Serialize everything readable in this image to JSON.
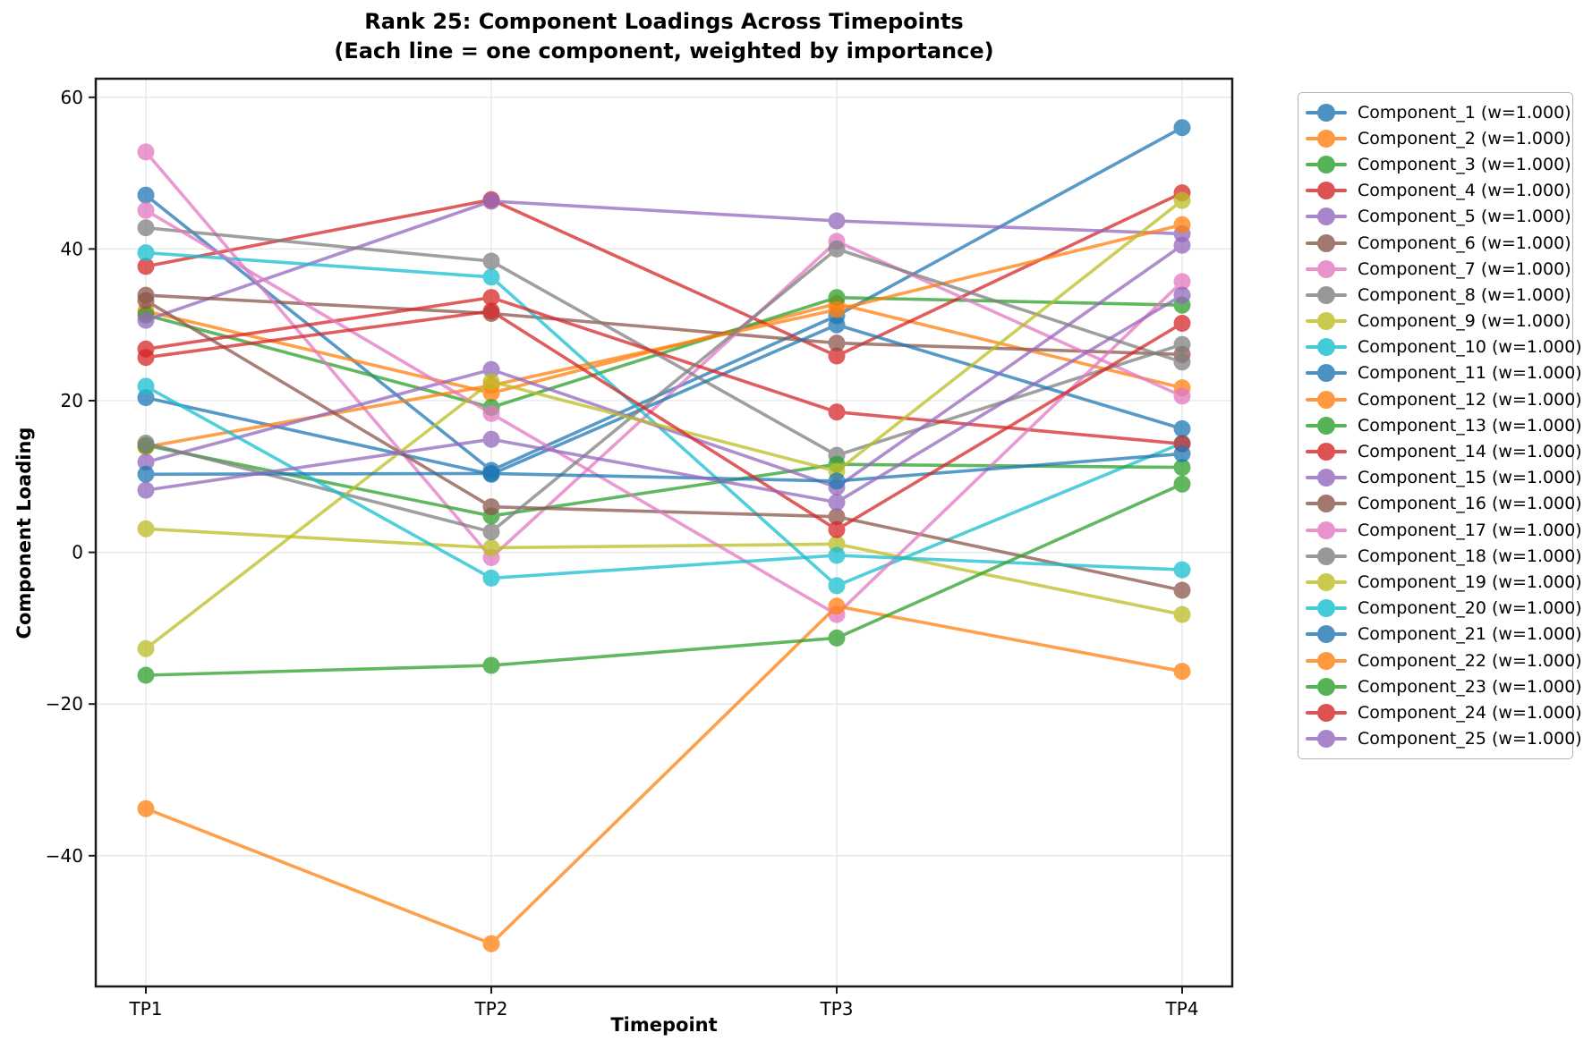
{
  "title": {
    "line1": "Rank 25: Component Loadings Across Timepoints",
    "line2": "(Each line = one component, weighted by importance)"
  },
  "axes": {
    "x_label": "Timepoint",
    "y_label": "Component Loading",
    "x_tick_labels": [
      "TP1",
      "TP2",
      "TP3",
      "TP4"
    ],
    "y_tick_values": [
      60,
      40,
      20,
      0,
      -20,
      -40
    ],
    "y_tick_labels": [
      "60",
      "40",
      "20",
      "0",
      "−20",
      "−40"
    ]
  },
  "chart_data": {
    "type": "line",
    "title": "Rank 25: Component Loadings Across Timepoints (Each line = one component, weighted by importance)",
    "xlabel": "Timepoint",
    "ylabel": "Component Loading",
    "categories": [
      "TP1",
      "TP2",
      "TP3",
      "TP4"
    ],
    "ylim": [
      -57,
      62.5
    ],
    "grid": true,
    "legend_position": "right-outside",
    "marker": "o",
    "line_alpha": 0.75,
    "series": [
      {
        "name": "Component_1",
        "label": "Component_1 (w=1.000)",
        "color": "#1f77b4",
        "values": [
          47.1,
          10.8,
          31.2,
          56.0
        ]
      },
      {
        "name": "Component_2",
        "label": "Component_2 (w=1.000)",
        "color": "#ff7f0e",
        "values": [
          31.8,
          21.0,
          32.8,
          21.7
        ]
      },
      {
        "name": "Component_3",
        "label": "Component_3 (w=1.000)",
        "color": "#2ca02c",
        "values": [
          31.3,
          19.1,
          33.6,
          32.6
        ]
      },
      {
        "name": "Component_4",
        "label": "Component_4 (w=1.000)",
        "color": "#d62728",
        "values": [
          37.7,
          46.5,
          25.9,
          47.4
        ]
      },
      {
        "name": "Component_5",
        "label": "Component_5 (w=1.000)",
        "color": "#9467bd",
        "values": [
          30.6,
          46.3,
          43.7,
          42.0
        ]
      },
      {
        "name": "Component_6",
        "label": "Component_6 (w=1.000)",
        "color": "#8c564b",
        "values": [
          33.9,
          31.5,
          27.6,
          26.1
        ]
      },
      {
        "name": "Component_7",
        "label": "Component_7 (w=1.000)",
        "color": "#e377c2",
        "values": [
          52.8,
          -0.7,
          41.0,
          20.6
        ]
      },
      {
        "name": "Component_8",
        "label": "Component_8 (w=1.000)",
        "color": "#7f7f7f",
        "values": [
          42.8,
          38.4,
          12.8,
          27.4
        ]
      },
      {
        "name": "Component_9",
        "label": "Component_9 (w=1.000)",
        "color": "#bcbd22",
        "values": [
          3.1,
          0.6,
          1.1,
          -8.2
        ]
      },
      {
        "name": "Component_10",
        "label": "Component_10 (w=1.000)",
        "color": "#17becf",
        "values": [
          39.5,
          36.3,
          -4.4,
          14.4
        ]
      },
      {
        "name": "Component_11",
        "label": "Component_11 (w=1.000)",
        "color": "#1f77b4",
        "values": [
          20.4,
          10.3,
          30.0,
          16.3
        ]
      },
      {
        "name": "Component_12",
        "label": "Component_12 (w=1.000)",
        "color": "#ff7f0e",
        "values": [
          13.9,
          22.0,
          32.0,
          43.2
        ]
      },
      {
        "name": "Component_13",
        "label": "Component_13 (w=1.000)",
        "color": "#2ca02c",
        "values": [
          14.1,
          4.8,
          11.6,
          11.2
        ]
      },
      {
        "name": "Component_14",
        "label": "Component_14 (w=1.000)",
        "color": "#d62728",
        "values": [
          26.8,
          33.6,
          18.5,
          14.3
        ]
      },
      {
        "name": "Component_15",
        "label": "Component_15 (w=1.000)",
        "color": "#9467bd",
        "values": [
          11.9,
          24.1,
          8.6,
          40.5
        ]
      },
      {
        "name": "Component_16",
        "label": "Component_16 (w=1.000)",
        "color": "#8c564b",
        "values": [
          33.2,
          6.0,
          4.7,
          -5.0
        ]
      },
      {
        "name": "Component_17",
        "label": "Component_17 (w=1.000)",
        "color": "#e377c2",
        "values": [
          45.1,
          18.3,
          -8.2,
          35.7
        ]
      },
      {
        "name": "Component_18",
        "label": "Component_18 (w=1.000)",
        "color": "#7f7f7f",
        "values": [
          14.4,
          2.7,
          40.0,
          25.1
        ]
      },
      {
        "name": "Component_19",
        "label": "Component_19 (w=1.000)",
        "color": "#bcbd22",
        "values": [
          -12.7,
          22.5,
          10.7,
          46.4
        ]
      },
      {
        "name": "Component_20",
        "label": "Component_20 (w=1.000)",
        "color": "#17becf",
        "values": [
          21.9,
          -3.4,
          -0.4,
          -2.3
        ]
      },
      {
        "name": "Component_21",
        "label": "Component_21 (w=1.000)",
        "color": "#1f77b4",
        "values": [
          10.3,
          10.4,
          9.4,
          13.0
        ]
      },
      {
        "name": "Component_22",
        "label": "Component_22 (w=1.000)",
        "color": "#ff7f0e",
        "values": [
          -33.8,
          -51.6,
          -7.1,
          -15.7
        ]
      },
      {
        "name": "Component_23",
        "label": "Component_23 (w=1.000)",
        "color": "#2ca02c",
        "values": [
          -16.2,
          -14.9,
          -11.3,
          9.0
        ]
      },
      {
        "name": "Component_24",
        "label": "Component_24 (w=1.000)",
        "color": "#d62728",
        "values": [
          25.7,
          31.8,
          3.0,
          30.2
        ]
      },
      {
        "name": "Component_25",
        "label": "Component_25 (w=1.000)",
        "color": "#9467bd",
        "values": [
          8.2,
          14.9,
          6.6,
          33.9
        ]
      }
    ]
  }
}
